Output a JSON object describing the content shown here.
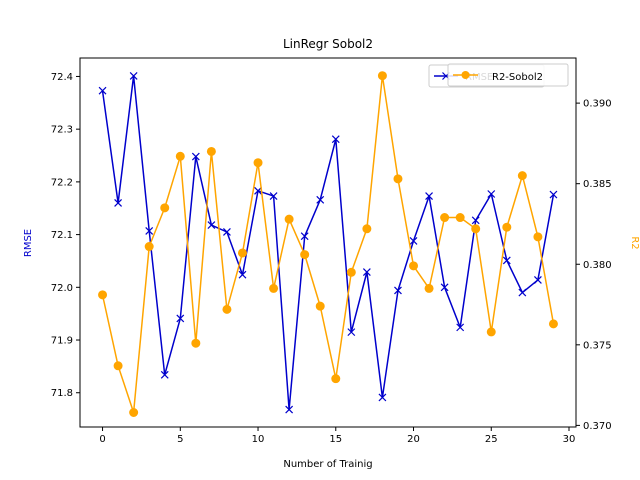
{
  "chart_data": {
    "type": "line",
    "title": "LinRegr Sobol2",
    "xlabel": "Number of Trainig",
    "ylabel_left": "RMSE",
    "ylabel_right": "R2",
    "xlim": [
      -1.45,
      30.45
    ],
    "ylim_left": [
      71.735,
      72.435
    ],
    "ylim_right": [
      0.3699,
      0.3928
    ],
    "xticks": [
      0,
      5,
      10,
      15,
      20,
      25,
      30
    ],
    "yticks_left": [
      71.8,
      71.9,
      72.0,
      72.1,
      72.2,
      72.3,
      72.4
    ],
    "yticks_right": [
      0.37,
      0.375,
      0.38,
      0.385,
      0.39
    ],
    "legend_placement": "top-right",
    "grid": false,
    "x": [
      0,
      1,
      2,
      3,
      4,
      5,
      6,
      7,
      8,
      9,
      10,
      11,
      12,
      13,
      14,
      15,
      16,
      17,
      18,
      19,
      20,
      21,
      22,
      23,
      24,
      25,
      26,
      27,
      28,
      29
    ],
    "series": [
      {
        "name": "RMSE",
        "axis": "left",
        "color": "#0000cc",
        "marker": "x",
        "values": [
          72.373,
          72.16,
          72.401,
          72.107,
          71.834,
          71.941,
          72.248,
          72.118,
          72.105,
          72.024,
          72.183,
          72.173,
          71.768,
          72.097,
          72.166,
          72.281,
          71.915,
          72.029,
          71.791,
          71.994,
          72.088,
          72.173,
          72.0,
          71.924,
          72.127,
          72.177,
          72.051,
          71.99,
          72.014,
          72.176
        ]
      },
      {
        "name": "R2-Sobol2",
        "axis": "right",
        "color": "#ffa500",
        "marker": "o",
        "values": [
          0.3781,
          0.3737,
          0.3708,
          0.3811,
          0.3835,
          0.3867,
          0.3751,
          0.387,
          0.3772,
          0.3807,
          0.3863,
          0.3785,
          0.3828,
          0.3806,
          0.3774,
          0.3729,
          0.3795,
          0.3822,
          0.3917,
          0.3853,
          0.3799,
          0.3785,
          0.3829,
          0.3829,
          0.3822,
          0.3758,
          0.3823,
          0.3855,
          0.3817,
          0.3763
        ]
      }
    ]
  }
}
